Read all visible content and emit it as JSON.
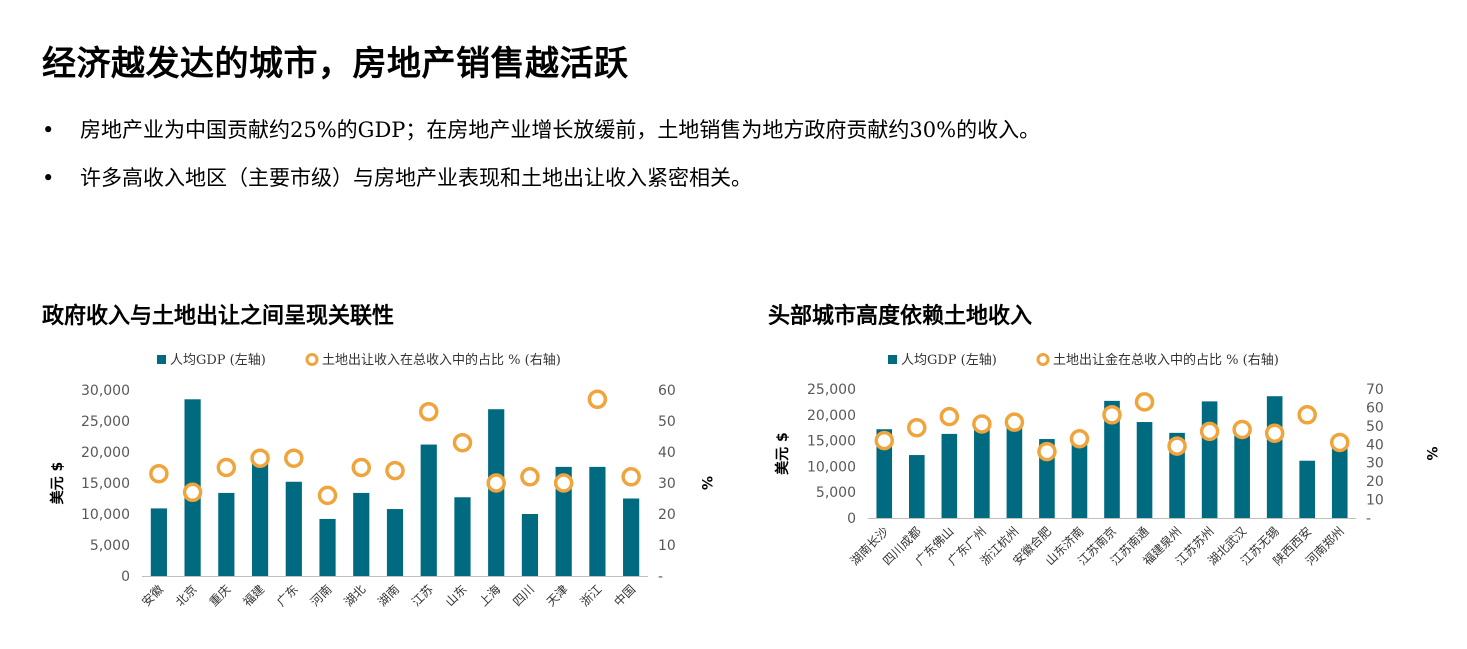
{
  "title": "经济越发达的城市，房地产销售越活跃",
  "bullets": [
    "房地产业为中国贡献约25%的GDP；在房地产业增长放缓前，土地销售为地方政府贡献约30%的收入。",
    "许多高收入地区（主要市级）与房地产业表现和土地出让收入紧密相关。"
  ],
  "colors": {
    "bar": "#006a80",
    "marker": "#f0a43c"
  },
  "chart_data": [
    {
      "type": "bar",
      "title": "政府收入与土地出让之间呈现关联性",
      "categories": [
        "安徽",
        "北京",
        "重庆",
        "福建",
        "广东",
        "河南",
        "湖北",
        "湖南",
        "江苏",
        "山东",
        "上海",
        "四川",
        "天津",
        "浙江",
        "中国"
      ],
      "series": [
        {
          "name": "人均GDP (左轴)",
          "type": "bar",
          "axis": "left",
          "values": [
            10900,
            28500,
            13400,
            18500,
            15200,
            9200,
            13400,
            10800,
            21200,
            12700,
            26900,
            10000,
            17600,
            17600,
            12500
          ]
        },
        {
          "name": "土地出让收入在总收入中的占比 % (右轴)",
          "type": "marker",
          "axis": "right",
          "values": [
            33,
            27,
            35,
            38,
            38,
            26,
            35,
            34,
            53,
            43,
            30,
            32,
            30,
            57,
            32
          ]
        }
      ],
      "ylabel": "美元 $",
      "y2label": "%",
      "ylim": [
        0,
        30000
      ],
      "yticks": [
        "0",
        "5,000",
        "10,000",
        "15,000",
        "20,000",
        "25,000",
        "30,000"
      ],
      "y2lim": [
        0,
        60
      ],
      "y2ticks": [
        "-",
        "10",
        "20",
        "30",
        "40",
        "50",
        "60"
      ],
      "legend": "top"
    },
    {
      "type": "bar",
      "title": "头部城市高度依赖土地收入",
      "categories": [
        "湖南长沙",
        "四川成都",
        "广东佛山",
        "广东广州",
        "浙江杭州",
        "安徽合肥",
        "山东济南",
        "江苏南京",
        "江苏南通",
        "福建泉州",
        "江苏苏州",
        "湖北武汉",
        "江苏无锡",
        "陕西西安",
        "河南郑州"
      ],
      "series": [
        {
          "name": "人均GDP (左轴)",
          "type": "bar",
          "axis": "left",
          "values": [
            17200,
            12200,
            16300,
            17700,
            18800,
            15300,
            15800,
            22700,
            18600,
            16500,
            22600,
            17600,
            23600,
            11100,
            14000
          ]
        },
        {
          "name": "土地出让金在总收入中的占比 % (右轴)",
          "type": "marker",
          "axis": "right",
          "values": [
            42,
            49,
            55,
            51,
            52,
            36,
            43,
            56,
            63,
            39,
            47,
            48,
            46,
            56,
            41
          ]
        }
      ],
      "ylabel": "美元 $",
      "y2label": "%",
      "ylim": [
        0,
        25000
      ],
      "yticks": [
        "0",
        "5,000",
        "10,000",
        "15,000",
        "20,000",
        "25,000"
      ],
      "y2lim": [
        0,
        70
      ],
      "y2ticks": [
        "-",
        "10",
        "20",
        "30",
        "40",
        "50",
        "60",
        "70"
      ],
      "legend": "top"
    }
  ]
}
